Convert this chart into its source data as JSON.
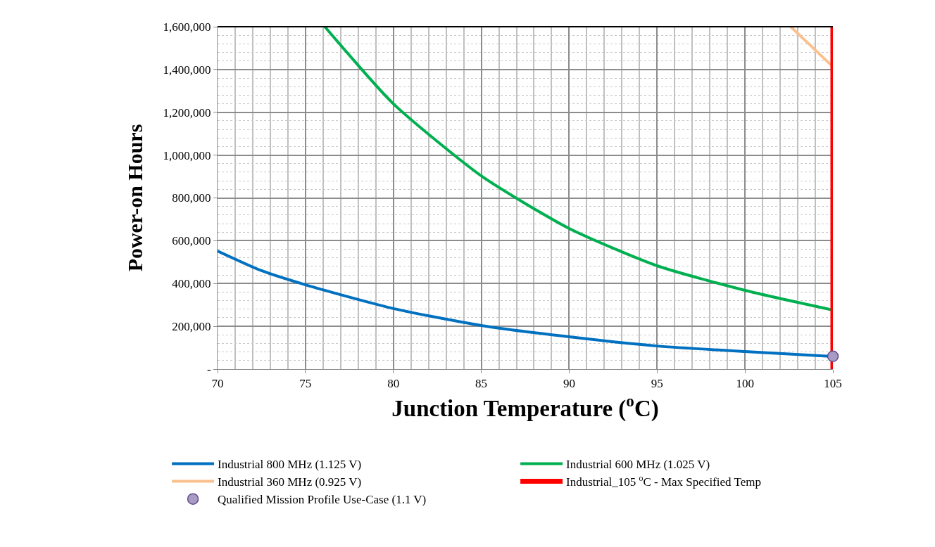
{
  "chart_data": {
    "type": "line",
    "xlabel": "Junction Temperature ($^{o}$C)",
    "ylabel": "Power-on Hours",
    "xlim": [
      70,
      105
    ],
    "xticks": [
      70,
      75,
      80,
      85,
      90,
      95,
      100,
      105
    ],
    "ylim": [
      0,
      1600000
    ],
    "yticks": [
      {
        "value": 0,
        "label": "-"
      },
      {
        "value": 200000,
        "label": "200,000"
      },
      {
        "value": 400000,
        "label": "400,000"
      },
      {
        "value": 600000,
        "label": "600,000"
      },
      {
        "value": 800000,
        "label": "800,000"
      },
      {
        "value": 1000000,
        "label": "1,000,000"
      },
      {
        "value": 1200000,
        "label": "1,200,000"
      },
      {
        "value": 1400000,
        "label": "1,400,000"
      },
      {
        "value": 1600000,
        "label": "1,600,000"
      }
    ],
    "grid": true,
    "legend": "bottom",
    "marker": "none",
    "line_style": "solid",
    "series": [
      {
        "name": "Industrial 800 MHz (1.125 V)",
        "color": "#0070c0",
        "x": [
          70,
          72.5,
          75,
          80,
          85,
          90,
          95,
          100,
          105
        ],
        "values": [
          552000,
          460000,
          394000,
          283000,
          204000,
          151000,
          108000,
          82000,
          59000
        ]
      },
      {
        "name": "Industrial 600 MHz (1.025 V)",
        "color": "#00b050",
        "x": [
          76.1,
          80,
          85,
          90,
          95,
          100,
          105
        ],
        "values": [
          1600000,
          1240000,
          903000,
          657000,
          483000,
          368000,
          276000
        ]
      },
      {
        "name": "Industrial 360 MHz (0.925 V)",
        "color": "#fac090",
        "x": [
          102.6,
          105
        ],
        "values": [
          1600000,
          1413000
        ]
      },
      {
        "name": "Qualified Mission Profile Use-Case (1.1 V)",
        "type": "scatter",
        "marker": "circle",
        "color": "#a99bc4",
        "x": [
          105
        ],
        "values": [
          60000
        ]
      }
    ],
    "ref_lines": [
      {
        "axis": "x",
        "value": 105,
        "label": "Industrial_105 $^{o}$C - Max Specified Temp",
        "color": "#ff0000"
      }
    ]
  }
}
